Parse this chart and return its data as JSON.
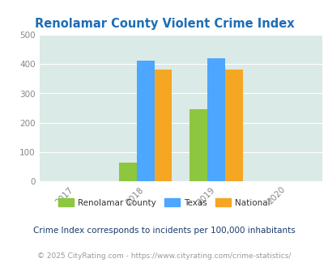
{
  "title": "Renolamar County Violent Crime Index",
  "title_color": "#1e6eb5",
  "years": [
    2017,
    2018,
    2019,
    2020
  ],
  "bar_groups": {
    "2018": {
      "county": 65,
      "texas": 412,
      "national": 381
    },
    "2019": {
      "county": 246,
      "texas": 419,
      "national": 381
    }
  },
  "colors": {
    "county": "#8dc63f",
    "texas": "#4da6ff",
    "national": "#f5a623"
  },
  "ylim": [
    0,
    500
  ],
  "yticks": [
    0,
    100,
    200,
    300,
    400,
    500
  ],
  "xlim": [
    2016.5,
    2020.5
  ],
  "bg_color": "#daeae6",
  "legend_labels": [
    "Renolamar County",
    "Texas",
    "National"
  ],
  "footnote1": "Crime Index corresponds to incidents per 100,000 inhabitants",
  "footnote2": "© 2025 CityRating.com - https://www.cityrating.com/crime-statistics/",
  "footnote1_color": "#1a3a6b",
  "footnote2_color": "#999999",
  "bar_width": 0.25,
  "group_centers": [
    2018,
    2019
  ]
}
